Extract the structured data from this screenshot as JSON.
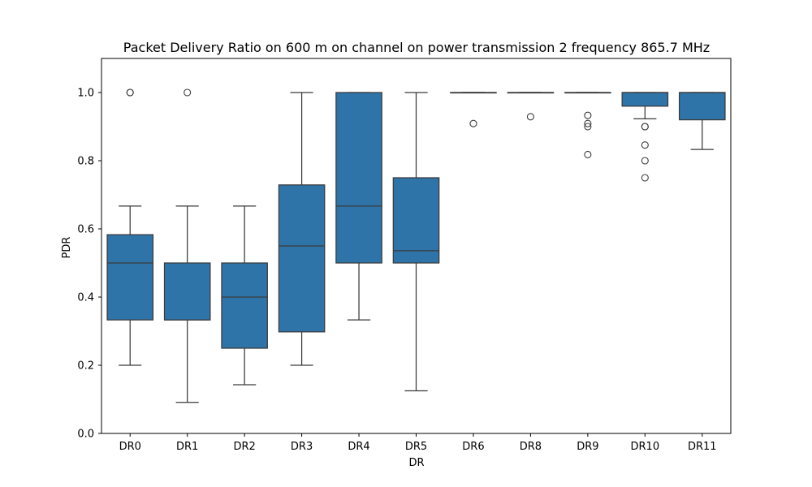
{
  "chart_data": {
    "type": "box",
    "title": "Packet Delivery Ratio on 600 m on channel on power transmission 2 frequency 865.7 MHz",
    "xlabel": "DR",
    "ylabel": "PDR",
    "ylim": [
      0.0,
      1.1
    ],
    "yticks": [
      0.0,
      0.2,
      0.4,
      0.6,
      0.8,
      1.0
    ],
    "ytick_labels": [
      "0.0",
      "0.2",
      "0.4",
      "0.6",
      "0.8",
      "1.0"
    ],
    "grid": false,
    "box_color": "#2f74a8",
    "line_color": "#3a3a3a",
    "categories": [
      "DR0",
      "DR1",
      "DR2",
      "DR3",
      "DR4",
      "DR5",
      "DR6",
      "DR8",
      "DR9",
      "DR10",
      "DR11"
    ],
    "boxes": [
      {
        "label": "DR0",
        "whisker_low": 0.2,
        "q1": 0.333,
        "median": 0.5,
        "q3": 0.583,
        "whisker_high": 0.667,
        "outliers": [
          1.0,
          1.0
        ]
      },
      {
        "label": "DR1",
        "whisker_low": 0.091,
        "q1": 0.333,
        "median": 0.333,
        "q3": 0.5,
        "whisker_high": 0.667,
        "outliers": [
          1.0
        ]
      },
      {
        "label": "DR2",
        "whisker_low": 0.143,
        "q1": 0.25,
        "median": 0.4,
        "q3": 0.5,
        "whisker_high": 0.667,
        "outliers": []
      },
      {
        "label": "DR3",
        "whisker_low": 0.2,
        "q1": 0.298,
        "median": 0.55,
        "q3": 0.729,
        "whisker_high": 1.0,
        "outliers": []
      },
      {
        "label": "DR4",
        "whisker_low": 0.333,
        "q1": 0.5,
        "median": 0.667,
        "q3": 1.0,
        "whisker_high": 1.0,
        "outliers": []
      },
      {
        "label": "DR5",
        "whisker_low": 0.125,
        "q1": 0.5,
        "median": 0.536,
        "q3": 0.75,
        "whisker_high": 1.0,
        "outliers": []
      },
      {
        "label": "DR6",
        "whisker_low": 1.0,
        "q1": 1.0,
        "median": 1.0,
        "q3": 1.0,
        "whisker_high": 1.0,
        "outliers": [
          0.909
        ]
      },
      {
        "label": "DR8",
        "whisker_low": 1.0,
        "q1": 1.0,
        "median": 1.0,
        "q3": 1.0,
        "whisker_high": 1.0,
        "outliers": [
          0.929
        ]
      },
      {
        "label": "DR9",
        "whisker_low": 1.0,
        "q1": 1.0,
        "median": 1.0,
        "q3": 1.0,
        "whisker_high": 1.0,
        "outliers": [
          0.933,
          0.909,
          0.9,
          0.818
        ]
      },
      {
        "label": "DR10",
        "whisker_low": 0.923,
        "q1": 0.96,
        "median": 1.0,
        "q3": 1.0,
        "whisker_high": 1.0,
        "outliers": [
          0.9,
          0.9,
          0.846,
          0.8,
          0.75
        ]
      },
      {
        "label": "DR11",
        "whisker_low": 0.833,
        "q1": 0.92,
        "median": 1.0,
        "q3": 1.0,
        "whisker_high": 1.0,
        "outliers": []
      }
    ]
  }
}
